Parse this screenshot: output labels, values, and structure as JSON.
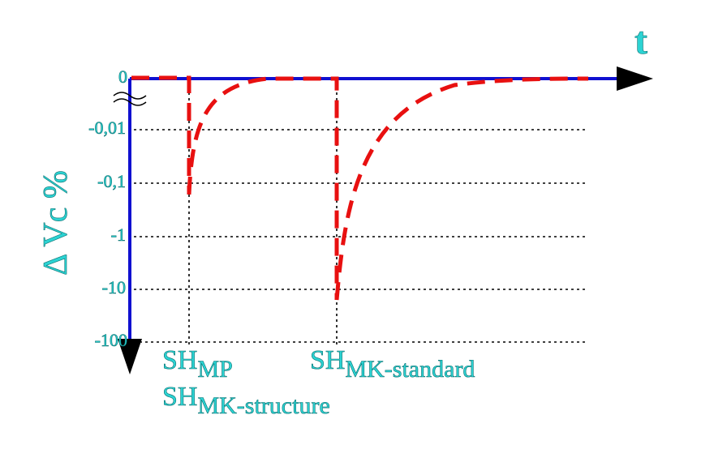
{
  "x_axis": {
    "label": "t"
  },
  "y_axis": {
    "label": "Δ Vc %",
    "ticks": [
      "0",
      "-0,01",
      "-0,1",
      "-1",
      "-10",
      "-100"
    ]
  },
  "markers": [
    {
      "symbol": "SH",
      "subscript": "MP"
    },
    {
      "symbol": "SH",
      "subscript": "MK-structure"
    },
    {
      "symbol": "SH",
      "subscript": "MK-standard"
    }
  ]
}
